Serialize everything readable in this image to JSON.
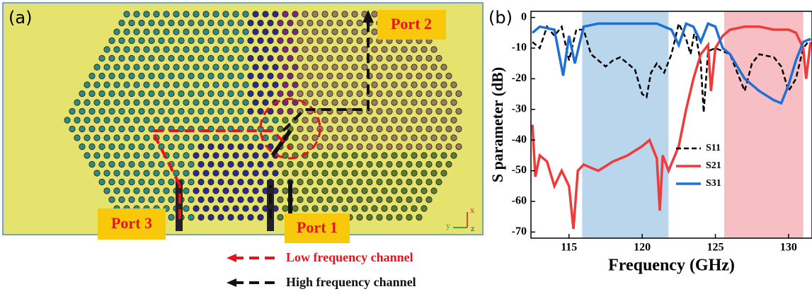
{
  "panel_a": {
    "label": "(a)",
    "ports": [
      "Port 2",
      "Port 3",
      "Port 1"
    ],
    "axes": [
      "x",
      "y",
      "z"
    ],
    "legend": [
      "Low frequency channel",
      "High frequency channel"
    ]
  },
  "chart_data": {
    "type": "line",
    "label": "(b)",
    "x_label": "Frequency (GHz)",
    "y_label": "S parameter (dB)",
    "xlim": [
      112.4,
      131.6
    ],
    "ylim": [
      -72,
      2
    ],
    "xticks": [
      115,
      120,
      125,
      130
    ],
    "yticks": [
      0,
      -10,
      -20,
      -30,
      -40,
      -50,
      -60,
      -70
    ],
    "bands": [
      {
        "from": 115.9,
        "to": 121.8,
        "color": "#b9d6ec"
      },
      {
        "from": 125.6,
        "to": 131,
        "color": "#f7bfc4"
      }
    ],
    "series": [
      {
        "name": "S11",
        "color": "#000000",
        "dash": true,
        "x": [
          112.5,
          113,
          113.5,
          114,
          114.5,
          115,
          115.5,
          116,
          116.5,
          117,
          117.5,
          118,
          118.5,
          119,
          119.5,
          120,
          120.3,
          120.6,
          121,
          121.5,
          122,
          122.5,
          123,
          123.3,
          123.6,
          124,
          124.2,
          124.5,
          125,
          126,
          126.5,
          127,
          127.5,
          128,
          129,
          129.5,
          130,
          130.5,
          131,
          131.5
        ],
        "values": [
          -8,
          -10,
          -3,
          -6,
          -3,
          -14,
          -4,
          -4,
          -12,
          -14,
          -16,
          -14,
          -13,
          -15,
          -17,
          -25,
          -26,
          -18,
          -15,
          -18,
          -12,
          -2,
          -7,
          -12,
          -4,
          -15,
          -31,
          -11,
          -10,
          -12,
          -18,
          -24,
          -15,
          -12,
          -13,
          -16,
          -24,
          -20,
          -10,
          -7
        ]
      },
      {
        "name": "S21",
        "color": "#ee3b3b",
        "dash": false,
        "x": [
          112.5,
          112.7,
          113,
          113.5,
          114,
          114.5,
          115,
          115.3,
          115.6,
          116,
          117,
          118,
          119,
          120,
          120.5,
          121,
          121.2,
          121.4,
          121.8,
          122.5,
          123,
          123.5,
          124,
          124.5,
          124.7,
          125,
          125.5,
          126,
          127,
          128,
          129,
          130,
          130.5,
          131,
          131.2,
          131.5
        ],
        "values": [
          -35,
          -52,
          -45,
          -47,
          -55,
          -50,
          -55,
          -69,
          -50,
          -48,
          -50,
          -47,
          -45,
          -42,
          -40,
          -46,
          -63,
          -45,
          -50,
          -42,
          -30,
          -20,
          -12,
          -9,
          -24,
          -10,
          -6,
          -4,
          -3,
          -3,
          -4,
          -4,
          -5,
          -10,
          -20,
          -8
        ]
      },
      {
        "name": "S31",
        "color": "#1f6fd6",
        "dash": false,
        "x": [
          112.5,
          113,
          114,
          114.6,
          115,
          115.4,
          116,
          117,
          118,
          119,
          120,
          121,
          122,
          122.5,
          123,
          123.5,
          124,
          124.5,
          125,
          125.5,
          126,
          126.5,
          127,
          128,
          129,
          129.5,
          130,
          130.5,
          131,
          131.5
        ],
        "values": [
          -5,
          -3,
          -4,
          -19,
          -6,
          -15,
          -3,
          -2,
          -2,
          -2,
          -2,
          -2,
          -4,
          -9,
          -2,
          -3,
          -8,
          -2,
          -3,
          -10,
          -12,
          -16,
          -20,
          -24,
          -27,
          -28,
          -22,
          -14,
          -8,
          -7
        ]
      }
    ]
  }
}
